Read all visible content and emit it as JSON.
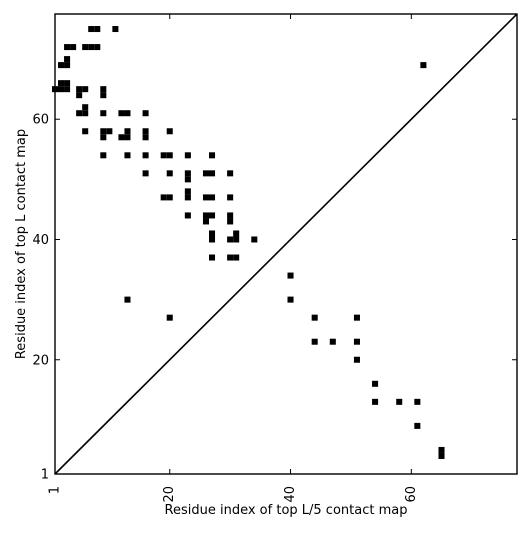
{
  "chart_data": {
    "type": "heatmap",
    "title": "",
    "xlabel": "Residue index of top L/5 contact map",
    "ylabel": "Residue index of top L contact map",
    "xlim": [
      1,
      77.5
    ],
    "ylim": [
      1,
      77.5
    ],
    "xticks": [
      {
        "value": 1,
        "label": "1"
      },
      {
        "value": 20,
        "label": "20"
      },
      {
        "value": 40,
        "label": "40"
      },
      {
        "value": 60,
        "label": "60"
      }
    ],
    "yticks": [
      {
        "value": 1,
        "label": "1"
      },
      {
        "value": 20,
        "label": "20"
      },
      {
        "value": 40,
        "label": "40"
      },
      {
        "value": 60,
        "label": "60"
      }
    ],
    "grid": false,
    "diagonal": true,
    "colors": {
      "cell": "#000000",
      "background": "#ffffff",
      "frame": "#000000"
    },
    "points": [
      [
        7,
        75
      ],
      [
        8,
        75
      ],
      [
        11,
        75
      ],
      [
        3,
        72
      ],
      [
        4,
        72
      ],
      [
        6,
        72
      ],
      [
        7,
        72
      ],
      [
        8,
        72
      ],
      [
        3,
        70
      ],
      [
        2,
        69
      ],
      [
        3,
        69
      ],
      [
        62,
        69
      ],
      [
        2,
        66
      ],
      [
        3,
        66
      ],
      [
        1,
        65
      ],
      [
        2,
        65
      ],
      [
        3,
        65
      ],
      [
        5,
        65
      ],
      [
        6,
        65
      ],
      [
        9,
        65
      ],
      [
        5,
        64
      ],
      [
        9,
        64
      ],
      [
        6,
        62
      ],
      [
        5,
        61
      ],
      [
        6,
        61
      ],
      [
        9,
        61
      ],
      [
        12,
        61
      ],
      [
        13,
        61
      ],
      [
        16,
        61
      ],
      [
        6,
        58
      ],
      [
        9,
        58
      ],
      [
        10,
        58
      ],
      [
        13,
        58
      ],
      [
        16,
        58
      ],
      [
        20,
        58
      ],
      [
        9,
        57
      ],
      [
        12,
        57
      ],
      [
        13,
        57
      ],
      [
        16,
        57
      ],
      [
        9,
        54
      ],
      [
        13,
        54
      ],
      [
        16,
        54
      ],
      [
        19,
        54
      ],
      [
        20,
        54
      ],
      [
        23,
        54
      ],
      [
        27,
        54
      ],
      [
        16,
        51
      ],
      [
        20,
        51
      ],
      [
        23,
        51
      ],
      [
        26,
        51
      ],
      [
        27,
        51
      ],
      [
        30,
        51
      ],
      [
        23,
        50
      ],
      [
        23,
        48
      ],
      [
        19,
        47
      ],
      [
        20,
        47
      ],
      [
        23,
        47
      ],
      [
        26,
        47
      ],
      [
        27,
        47
      ],
      [
        30,
        47
      ],
      [
        23,
        44
      ],
      [
        26,
        44
      ],
      [
        27,
        44
      ],
      [
        30,
        44
      ],
      [
        26,
        43
      ],
      [
        30,
        43
      ],
      [
        27,
        41
      ],
      [
        31,
        41
      ],
      [
        27,
        40
      ],
      [
        30,
        40
      ],
      [
        31,
        40
      ],
      [
        34,
        40
      ],
      [
        27,
        37
      ],
      [
        30,
        37
      ],
      [
        31,
        37
      ],
      [
        40,
        34
      ],
      [
        13,
        30
      ],
      [
        40,
        30
      ],
      [
        20,
        27
      ],
      [
        44,
        27
      ],
      [
        51,
        27
      ],
      [
        44,
        23
      ],
      [
        47,
        23
      ],
      [
        51,
        23
      ],
      [
        51,
        20
      ],
      [
        54,
        16
      ],
      [
        54,
        13
      ],
      [
        58,
        13
      ],
      [
        61,
        13
      ],
      [
        61,
        9
      ],
      [
        65,
        5
      ],
      [
        65,
        4
      ]
    ]
  }
}
